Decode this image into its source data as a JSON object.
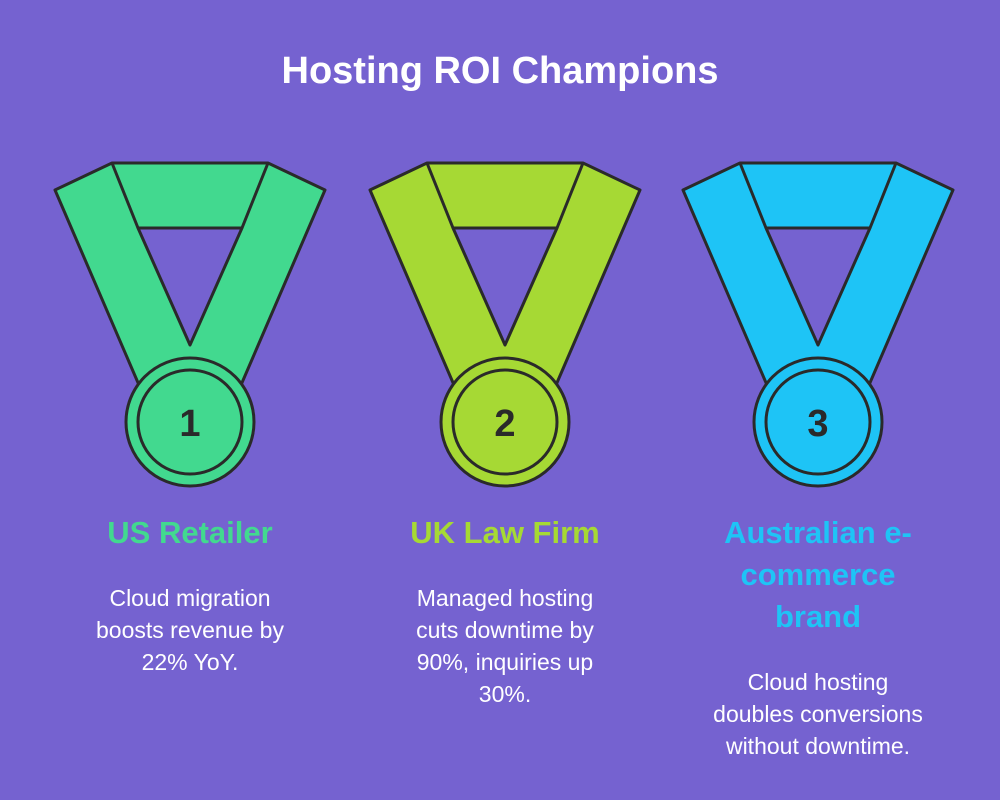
{
  "header": {
    "title": "Hosting ROI Champions"
  },
  "medals": [
    {
      "number": "1",
      "title": "US Retailer",
      "description": "Cloud migration boosts revenue by 22% YoY.",
      "color": "#42d98f"
    },
    {
      "number": "2",
      "title": "UK Law Firm",
      "description": "Managed hosting cuts downtime by 90%, inquiries up 30%.",
      "color": "#a6d934"
    },
    {
      "number": "3",
      "title": "Australian e-commerce brand",
      "description": "Cloud hosting doubles conversions without downtime.",
      "color": "#1ec4f6"
    }
  ]
}
